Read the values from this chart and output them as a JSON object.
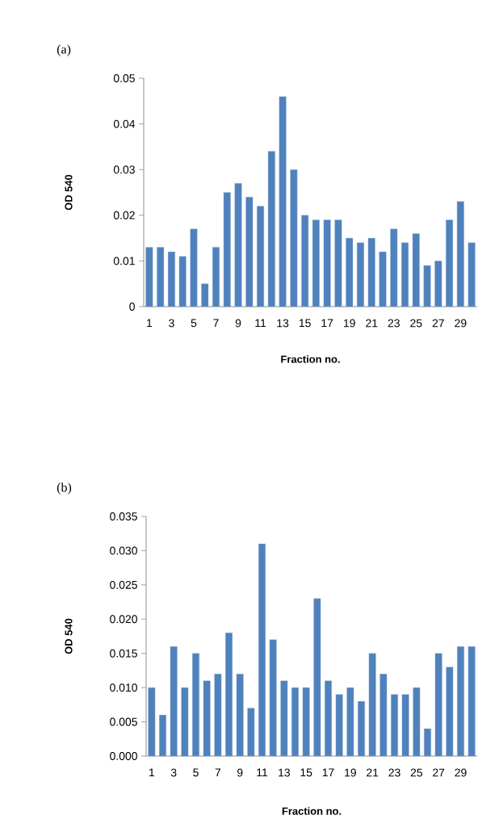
{
  "chart_data": [
    {
      "type": "bar",
      "title": "(a)",
      "xlabel": "Fraction no.",
      "ylabel": "OD 540",
      "categories": [
        "1",
        null,
        "3",
        null,
        "5",
        null,
        "7",
        null,
        "9",
        null,
        "11",
        null,
        "13",
        null,
        "15",
        null,
        "17",
        null,
        "19",
        null,
        "21",
        null,
        "23",
        null,
        "25",
        null,
        "27",
        null,
        "29",
        null
      ],
      "values": [
        0.013,
        0.013,
        0.012,
        0.011,
        0.017,
        0.005,
        0.013,
        0.025,
        0.027,
        0.024,
        0.022,
        0.034,
        0.046,
        0.03,
        0.02,
        0.019,
        0.019,
        0.019,
        0.015,
        0.014,
        0.015,
        0.012,
        0.017,
        0.014,
        0.016,
        0.009,
        0.01,
        0.019,
        0.023,
        0.014
      ],
      "color": "#4f81bd",
      "ylim": [
        0,
        0.05
      ],
      "yticks": [
        0,
        0.01,
        0.02,
        0.03,
        0.04,
        0.05
      ]
    },
    {
      "type": "bar",
      "title": "(b)",
      "xlabel": "Fraction no.",
      "ylabel": "OD 540",
      "categories": [
        "1",
        null,
        "3",
        null,
        "5",
        null,
        "7",
        null,
        "9",
        null,
        "11",
        null,
        "13",
        null,
        "15",
        null,
        "17",
        null,
        "19",
        null,
        "21",
        null,
        "23",
        null,
        "25",
        null,
        "27",
        null,
        "29",
        null
      ],
      "values": [
        0.01,
        0.006,
        0.016,
        0.01,
        0.015,
        0.011,
        0.012,
        0.018,
        0.012,
        0.007,
        0.031,
        0.017,
        0.011,
        0.01,
        0.01,
        0.023,
        0.011,
        0.009,
        0.01,
        0.008,
        0.015,
        0.012,
        0.009,
        0.009,
        0.01,
        0.004,
        0.015,
        0.013,
        0.016,
        0.016
      ],
      "color": "#4f81bd",
      "ylim": [
        0,
        0.035
      ],
      "yticks": [
        {
          "value": 0,
          "label": "0.000"
        },
        {
          "value": 0.005,
          "label": "0.005"
        },
        {
          "value": 0.01,
          "label": "0.010"
        },
        {
          "value": 0.015,
          "label": "0.015"
        },
        {
          "value": 0.02,
          "label": "0.020"
        },
        {
          "value": 0.025,
          "label": "0.025"
        },
        {
          "value": 0.03,
          "label": "0.030"
        },
        {
          "value": 0.035,
          "label": "0.035"
        }
      ]
    }
  ]
}
